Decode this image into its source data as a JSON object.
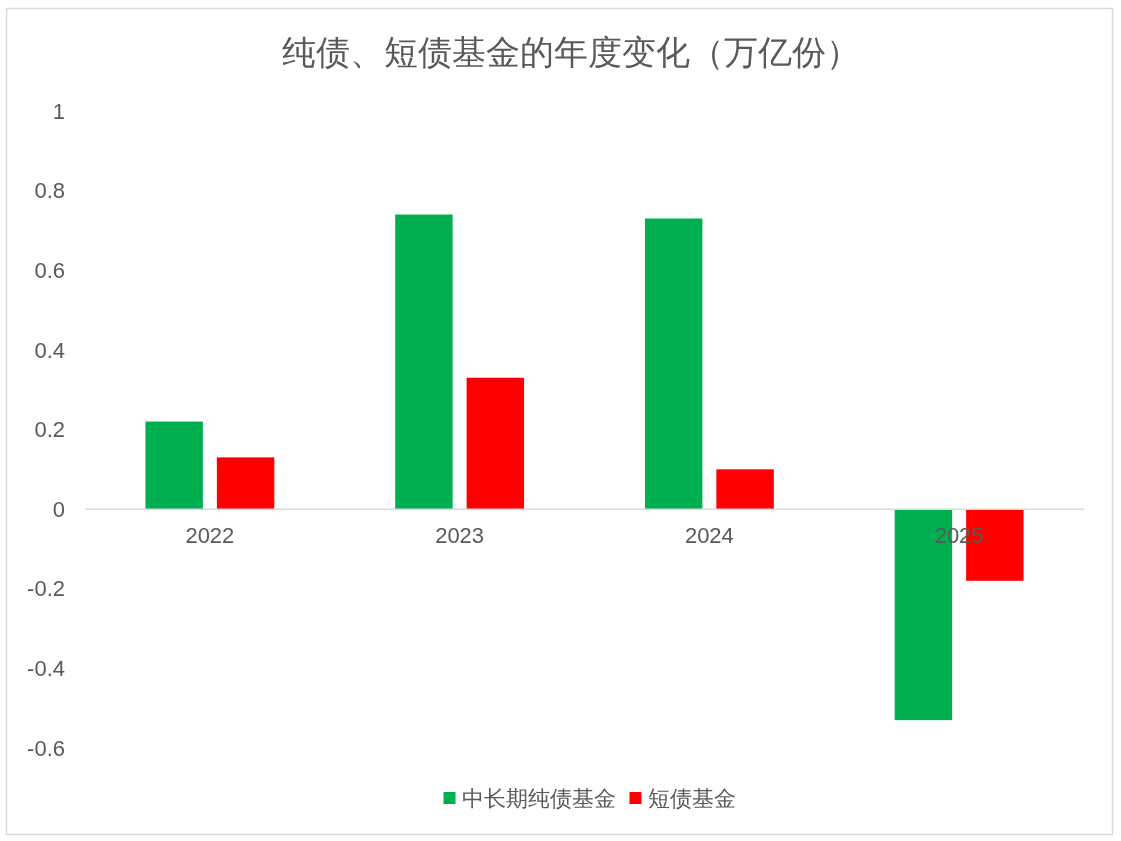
{
  "chart_data": {
    "type": "bar",
    "title": "纯债、短债基金的年度变化（万亿份）",
    "categories": [
      "2022",
      "2023",
      "2024",
      "2025"
    ],
    "series": [
      {
        "name": "中长期纯债基金",
        "color": "#00b050",
        "values": [
          0.22,
          0.74,
          0.73,
          -0.53
        ]
      },
      {
        "name": "短债基金",
        "color": "#ff0000",
        "values": [
          0.13,
          0.33,
          0.1,
          -0.18
        ]
      }
    ],
    "ylim": [
      -0.6,
      1
    ],
    "yticks": [
      -0.6,
      -0.4,
      -0.2,
      0,
      0.2,
      0.4,
      0.6,
      0.8,
      1
    ],
    "legend": "bottom"
  }
}
